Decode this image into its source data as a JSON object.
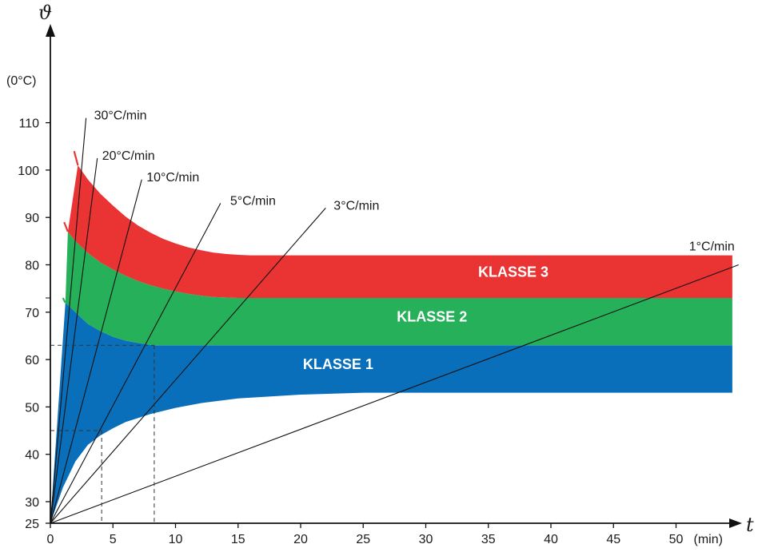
{
  "chart_data": {
    "type": "area",
    "x_symbol": "t",
    "y_symbol": "ϑ",
    "x_unit": "(min)",
    "y_unit": "(0°C)",
    "x_ticks": [
      0,
      5,
      10,
      15,
      20,
      25,
      30,
      35,
      40,
      45,
      50
    ],
    "y_ticks": [
      25,
      30,
      40,
      50,
      60,
      70,
      80,
      90,
      100,
      110
    ],
    "xlim": [
      0,
      55
    ],
    "ylim": [
      25,
      125
    ],
    "grid": false,
    "bands": [
      {
        "name": "KLASSE 1",
        "color": "#0a6fba",
        "upper": {
          "x": [
            1.2,
            2,
            3,
            4,
            5,
            6,
            7,
            8,
            8.3,
            9,
            10,
            12,
            14,
            16,
            20,
            25,
            30,
            35,
            40,
            45,
            50,
            54.5
          ],
          "y": [
            72,
            70,
            67.5,
            66,
            64.8,
            64,
            63.5,
            63.1,
            63,
            63,
            63,
            63,
            63,
            63,
            63,
            63,
            63,
            63,
            63,
            63,
            63,
            63
          ]
        },
        "lower": {
          "x": [
            0,
            1,
            2,
            3,
            4,
            5,
            6,
            8,
            10,
            12,
            15,
            20,
            25,
            30,
            35,
            40,
            45,
            50,
            54.5
          ],
          "y": [
            25,
            33,
            38.5,
            42,
            44,
            45.5,
            46.8,
            48.5,
            49.8,
            50.8,
            51.8,
            52.6,
            53,
            53,
            53,
            53,
            53,
            53,
            53
          ]
        }
      },
      {
        "name": "KLASSE 2",
        "color": "#27b05a",
        "upper": {
          "x": [
            1.4,
            2,
            3,
            4,
            5,
            6,
            7,
            8,
            9,
            10,
            11,
            12,
            13,
            14,
            15,
            20,
            25,
            30,
            35,
            40,
            45,
            50,
            54.5
          ],
          "y": [
            87,
            85,
            82.5,
            80.5,
            79,
            77.7,
            76.6,
            75.7,
            75,
            74.4,
            73.9,
            73.5,
            73.2,
            73.1,
            73,
            73,
            73,
            73,
            73,
            73,
            73,
            73,
            73
          ]
        },
        "lower": {
          "x": [
            1.2,
            2,
            3,
            4,
            5,
            6,
            7,
            8,
            8.3,
            9,
            10,
            12,
            14,
            16,
            20,
            25,
            30,
            35,
            40,
            45,
            50,
            54.5
          ],
          "y": [
            72,
            70,
            67.5,
            66,
            64.8,
            64,
            63.5,
            63.1,
            63,
            63,
            63,
            63,
            63,
            63,
            63,
            63,
            63,
            63,
            63,
            63,
            63,
            63
          ]
        }
      },
      {
        "name": "KLASSE 3",
        "color": "#ea3434",
        "upper": {
          "x": [
            2.2,
            3,
            4,
            5,
            6,
            7,
            8,
            9,
            10,
            11,
            12,
            13,
            14,
            15,
            16,
            20,
            25,
            30,
            35,
            40,
            45,
            50,
            54.5
          ],
          "y": [
            101,
            98,
            95,
            92.5,
            90.2,
            88.3,
            86.8,
            85.5,
            84.5,
            83.7,
            83.1,
            82.6,
            82.3,
            82.1,
            82,
            82,
            82,
            82,
            82,
            82,
            82,
            82,
            82
          ]
        },
        "lower": {
          "x": [
            1.4,
            2,
            3,
            4,
            5,
            6,
            7,
            8,
            9,
            10,
            11,
            12,
            13,
            14,
            15,
            20,
            25,
            30,
            35,
            40,
            45,
            50,
            54.5
          ],
          "y": [
            87,
            85,
            82.5,
            80.5,
            79,
            77.7,
            76.6,
            75.7,
            75,
            74.4,
            73.9,
            73.5,
            73.2,
            73.1,
            73,
            73,
            73,
            73,
            73,
            73,
            73,
            73,
            73
          ]
        }
      }
    ],
    "red_edge": {
      "x": [
        1.9,
        2.2
      ],
      "y": [
        104,
        101
      ]
    },
    "red_edge_2": {
      "x": [
        1.1,
        1.4
      ],
      "y": [
        89,
        87
      ]
    },
    "green_edge": {
      "x": [
        1.0,
        1.2
      ],
      "y": [
        73,
        72
      ]
    },
    "rate_lines": [
      {
        "label": "30°C/min",
        "x_end": 2.85,
        "y_end": 111
      },
      {
        "label": "20°C/min",
        "x_end": 3.75,
        "y_end": 102.5
      },
      {
        "label": "10°C/min",
        "x_end": 7.3,
        "y_end": 98
      },
      {
        "label": "5°C/min",
        "x_end": 13.6,
        "y_end": 93
      },
      {
        "label": "3°C/min",
        "x_end": 22.0,
        "y_end": 92
      },
      {
        "label": "1°C/min",
        "x_end": 55.0,
        "y_end": 80
      }
    ],
    "reference_markers": [
      {
        "x": 8.3,
        "y": 63
      },
      {
        "x": 4.1,
        "y": 45
      }
    ]
  }
}
